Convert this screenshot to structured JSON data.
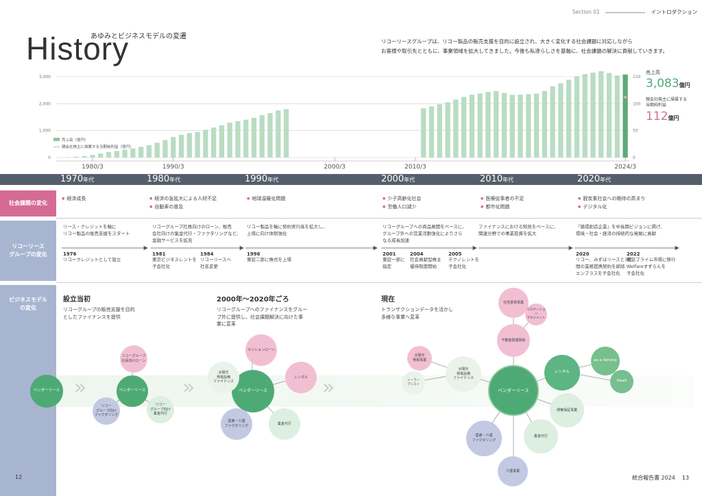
{
  "header": {
    "section": "Section 01",
    "section_title": "イントロダクション"
  },
  "title": {
    "main": "History",
    "sub": "あゆみとビジネスモデルの変遷"
  },
  "intro": {
    "line1": "リコーリースグループは、リコー製品の販売支援を目的に設立され、大きく変化する社会課題に対応しながら",
    "line2": "お客様や取引先とともに、事業領域を拡大してきました。今後も私達らしさを基軸に、社会課題の解決に貢献していきます。"
  },
  "colors": {
    "bar": "#b8ddc2",
    "bar_highlight": "#5fa979",
    "line": "#e8a9c3",
    "era_bar": "#555f6b",
    "row_pink": "#d56b95",
    "row_blue": "#a8b5d1"
  },
  "chart_data": {
    "type": "bar",
    "series": [
      {
        "name": "売上高（億円）",
        "axis": "left",
        "values": [
          5,
          14,
          33,
          59,
          99,
          152,
          205,
          248,
          292,
          340,
          397,
          460,
          554,
          648,
          764,
          845,
          910,
          952,
          1031,
          1113,
          1201,
          1294,
          1353,
          1406,
          1476,
          1573,
          1653,
          1749,
          1800,
          null,
          null,
          null,
          null,
          null,
          null,
          null,
          null,
          null,
          null,
          null,
          null,
          null,
          null,
          null,
          null,
          1828,
          1898,
          1974,
          2054,
          2154,
          2252,
          2336,
          2380,
          2436,
          2468,
          2397,
          2331,
          2333,
          2354,
          2377,
          2473,
          2642,
          2756,
          2886,
          3018,
          3099,
          3152,
          3206,
          3139,
          3045,
          3083
        ]
      },
      {
        "name": "親会社株主に帰属する当期純利益（億円）",
        "axis": "right",
        "values": [
          null,
          null,
          null,
          null,
          null,
          null,
          null,
          null,
          null,
          null,
          null,
          null,
          null,
          null,
          null,
          null,
          null,
          null,
          null,
          null,
          null,
          null,
          null,
          null,
          null,
          null,
          null,
          null,
          null,
          null,
          null,
          null,
          null,
          null,
          null,
          null,
          null,
          null,
          null,
          null,
          null,
          null,
          null,
          null,
          null,
          null,
          null,
          null,
          null,
          null,
          null,
          null,
          null,
          null,
          null,
          null,
          null,
          null,
          null,
          null,
          null,
          null,
          null,
          null,
          null,
          null,
          null,
          null,
          null,
          null,
          112
        ]
      }
    ],
    "x_tick_labels": [
      "1980/3",
      "1990/3",
      "2000/3",
      "2010/3",
      "2024/3"
    ],
    "y_left_ticks": [
      "3,000",
      "2,000",
      "1,000",
      "0"
    ],
    "y_right_ticks": [
      "150",
      "100",
      "50",
      "0"
    ],
    "ylim_left": [
      0,
      3000
    ],
    "ylim_right": [
      0,
      150
    ],
    "legend": [
      "売上高（億円）",
      "親会社株主に帰属する当期純利益（億円）"
    ],
    "legend_position": "bottom-left"
  },
  "kpis": {
    "sales_label": "売上高",
    "sales_value": "3,083",
    "sales_unit": "億円",
    "profit_label1": "親会社株主に帰属する",
    "profit_label2": "当期純利益",
    "profit_value": "112",
    "profit_unit": "億円"
  },
  "eras": [
    {
      "year": "1970",
      "suffix": "年代"
    },
    {
      "year": "1980",
      "suffix": "年代"
    },
    {
      "year": "1990",
      "suffix": "年代"
    },
    {
      "year": "2000",
      "suffix": "年代"
    },
    {
      "year": "2010",
      "suffix": "年代"
    },
    {
      "year": "2020",
      "suffix": "年代"
    }
  ],
  "rows": {
    "social": "社会課題の変化",
    "group1": "リコーリース",
    "group2": "グループの変化",
    "bm1": "ビジネスモデル",
    "bm2": "の変化"
  },
  "social_issues": {
    "s1970": [
      "経済成長"
    ],
    "s1980": [
      "経済の急拡大による人材不足",
      "自動車の普及"
    ],
    "s1990": [
      "地球温暖化問題"
    ],
    "s2000": [
      "少子高齢化社会",
      "労働人口減少"
    ],
    "s2010": [
      "医療従事者の不足",
      "都市化問題"
    ],
    "s2020": [
      "脱炭素社会への期待の高まり",
      "デジタル化"
    ]
  },
  "group_changes": {
    "g1970": [
      "リース・クレジットを軸に",
      "リコー製品の販売支援をスタート"
    ],
    "g1980": [
      "リコーグループ社員向けのローン、販売",
      "会社向けの集金代行・ファクタリングなど、",
      "金融サービスを拡充"
    ],
    "g1990": [
      "リコー製品を軸に契約実行高を拡大し、",
      "上場に向け体制強化"
    ],
    "g2000": [
      "リコーグループへの商品展開をベースに、",
      "グループ外への営業活動強化によりさら",
      "なる成長加速"
    ],
    "g2010": [
      "ファイナンスにおける知見をベースに、",
      "関連分野での事業投資を拡大"
    ],
    "g2020": [
      "『循環創造企業』を中長期ビジョンに掲げ、",
      "環境・社会・経済の持続的な発展に貢献"
    ]
  },
  "events": [
    {
      "year": "1976",
      "lines": [
        "リコークレジットとして設立"
      ]
    },
    {
      "year": "1981",
      "lines": [
        "東京ビジネスレントを",
        "子会社化"
      ]
    },
    {
      "year": "1984",
      "lines": [
        "リコーリースへ",
        "社名変更"
      ]
    },
    {
      "year": "1996",
      "lines": [
        "東証二部に株式を上場"
      ]
    },
    {
      "year": "2001",
      "lines": [
        "東証一部に",
        "指定"
      ]
    },
    {
      "year": "2004",
      "lines": [
        "社会貢献型株主",
        "優待制度開始"
      ]
    },
    {
      "year": "2005",
      "lines": [
        "テクノレントを",
        "子会社化"
      ]
    },
    {
      "year": "2020",
      "lines": [
        "リコー、みずほリースと3社",
        "間の業務提携契約を締結",
        "エンプラスを子会社化"
      ]
    },
    {
      "year": "2022",
      "lines": [
        "東証プライム市場に移行",
        "Welfareすずらんを",
        "子会社化"
      ]
    }
  ],
  "business_models": {
    "p1": {
      "title": "設立当初",
      "desc1": "リコーグループの販売支援を目的",
      "desc2": "としたファイナンスを提供"
    },
    "p2": {
      "title": "2000年～2020年ごろ",
      "desc1": "リコーグループへのファイナンスをグルー",
      "desc2": "プ外に提供し、社会課題解決に向けた事",
      "desc3": "業に変革"
    },
    "p3": {
      "title": "現在",
      "desc1": "トランザクションデータを活かし",
      "desc2": "多様な事業へ変革"
    }
  },
  "circles": {
    "vendor_lease": "ベンダーリース",
    "ricoh_loan1": "リコーグループ",
    "ricoh_loan2": "社員向けローン",
    "ricoh_fact1": "リコー",
    "ricoh_fact2": "グループ向け",
    "ricoh_fact3": "ファクタリング",
    "ricoh_coll1": "リコー",
    "ricoh_coll2": "グループ向け",
    "ricoh_coll3": "集金代行",
    "mansion_loan": "マンションローン",
    "solar_fin1": "太陽光",
    "solar_fin2": "発電設備",
    "solar_fin3": "ファイナンス",
    "rental": "レンタル",
    "medical_fact1": "医療・介護",
    "medical_fact2": "ファクタリング",
    "collection": "集金代行",
    "housing_rent": "住宅賃貸事業",
    "relocation1": "リロケーション",
    "relocation2": "マネジメント",
    "real_estate": "不動産関連融資",
    "solar_gen1": "太陽光",
    "solar_gen2": "発電事業",
    "solar_assist1": "ソーラー",
    "solar_assist2": "アシスト",
    "aas": "as a Service",
    "daas": "DaaS",
    "guarantee": "債権保証事業",
    "care": "介護事業"
  },
  "footer": {
    "page_left": "12",
    "page_right": "13",
    "report": "統合報告書 2024"
  }
}
